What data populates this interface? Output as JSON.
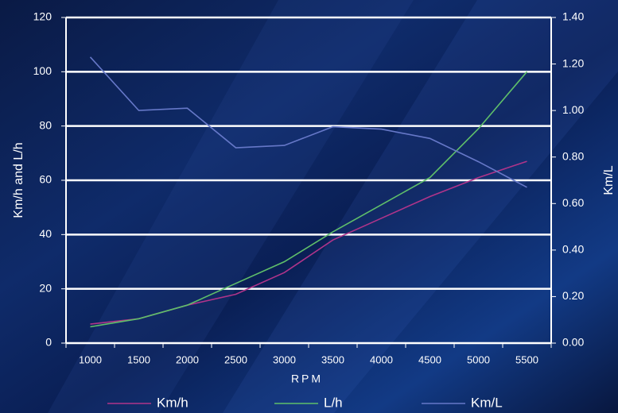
{
  "chart_data": {
    "type": "line",
    "x_label": "RPM",
    "y_label": "Km/h and L/h",
    "y2_label": "Km/L",
    "categories": [
      "1000",
      "1500",
      "2000",
      "2500",
      "3000",
      "3500",
      "4000",
      "4500",
      "5000",
      "5500"
    ],
    "series": [
      {
        "name": "Km/h",
        "color": "#b0348a",
        "values": [
          7,
          9,
          14,
          18,
          26,
          38,
          46,
          54,
          61,
          67
        ]
      },
      {
        "name": "L/h",
        "color": "#5fbf6a",
        "values": [
          6,
          9,
          14,
          22,
          30,
          41,
          51,
          61,
          79,
          100
        ]
      },
      {
        "name": "Km/L",
        "color": "#6678c8",
        "axis": "y2",
        "values": [
          1.23,
          1.0,
          1.01,
          0.84,
          0.85,
          0.93,
          0.92,
          0.88,
          0.78,
          0.67
        ]
      }
    ],
    "ylim": [
      0,
      120
    ],
    "yticks": [
      0,
      20,
      40,
      60,
      80,
      100,
      120
    ],
    "y2lim": [
      0,
      1.4
    ],
    "y2ticks": [
      {
        "value": 0,
        "label": "0.00"
      },
      {
        "value": 0.2,
        "label": "0.20"
      },
      {
        "value": 0.4,
        "label": "0.40"
      },
      {
        "value": 0.6,
        "label": "0.60"
      },
      {
        "value": 0.8,
        "label": "0.80"
      },
      {
        "value": 1.0,
        "label": "1.00"
      },
      {
        "value": 1.2,
        "label": "1.20"
      },
      {
        "value": 1.4,
        "label": "1.40"
      }
    ],
    "grid": true
  }
}
